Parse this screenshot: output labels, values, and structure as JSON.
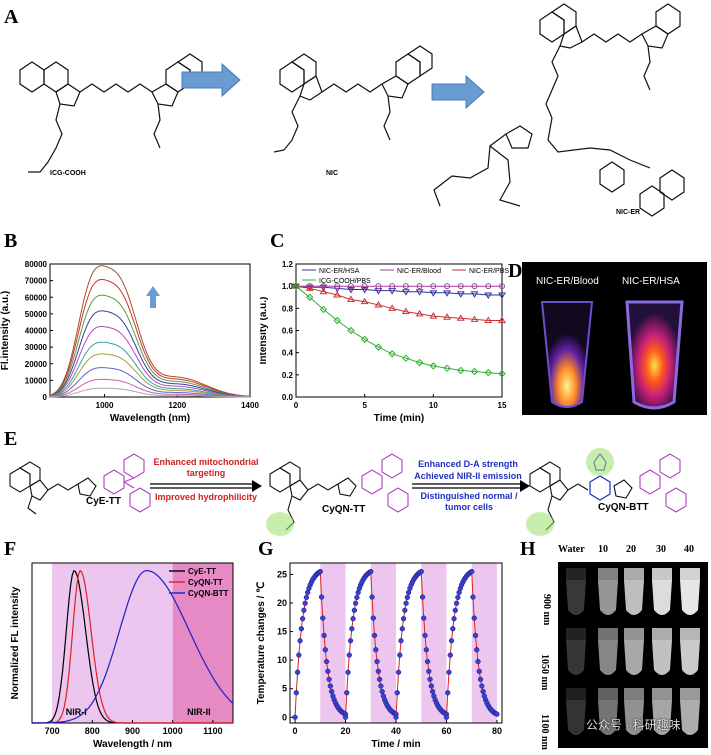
{
  "panels": {
    "A": "A",
    "B": "B",
    "C": "C",
    "D": "D",
    "E": "E",
    "F": "F",
    "G": "G",
    "H": "H"
  },
  "panel_a": {
    "molecules": [
      "ICG-COOH",
      "NIC",
      "NIC-ER"
    ]
  },
  "panel_d": {
    "labels": [
      "NIC-ER/Blood",
      "NIC-ER/HSA"
    ]
  },
  "panel_e": {
    "molecules": [
      "CyE-TT",
      "CyQN-TT",
      "CyQN-BTT"
    ],
    "arrow1_top": "Enhanced mitochondrial targeting",
    "arrow1_bottom": "Improved hydrophilicity",
    "arrow2_top_1": "Enhanced D-A strength",
    "arrow2_top_2": "Achieved NIR-II emission",
    "arrow2_bottom": "Distinguished normal / tumor cells"
  },
  "panel_h": {
    "columns": [
      "Water",
      "10",
      "20",
      "30",
      "40"
    ],
    "rows": [
      "900 nm",
      "1050 nm",
      "1100 nm"
    ]
  },
  "watermark": "公众号 · 科研趣味",
  "chart_data": [
    {
      "id": "B",
      "type": "line",
      "xlabel": "Wavelength (nm)",
      "ylabel": "Fl.intensity (a.u.)",
      "xlim": [
        850,
        1400
      ],
      "ylim": [
        0,
        80000
      ],
      "xticks": [
        1000,
        1200,
        1400
      ],
      "yticks": [
        0,
        10000,
        20000,
        30000,
        40000,
        50000,
        60000,
        70000,
        80000
      ],
      "series_peaks": [
        67000,
        60000,
        52000,
        44000,
        36000,
        28000,
        22000,
        15000,
        9000,
        4500
      ],
      "colors": [
        "#a0522d",
        "#cc3333",
        "#5a9e3c",
        "#3c3ca8",
        "#b44ab4",
        "#3aa0a0",
        "#a0a03c",
        "#6060d0",
        "#d060a0",
        "#aaaaaa"
      ]
    },
    {
      "id": "C",
      "type": "line",
      "xlabel": "Time (min)",
      "ylabel": "Intensity (a.u.)",
      "xlim": [
        0,
        15
      ],
      "ylim": [
        0,
        1.2
      ],
      "xticks": [
        0,
        5,
        10,
        15
      ],
      "yticks": [
        0,
        0.2,
        0.4,
        0.6,
        0.8,
        1.0,
        1.2
      ],
      "x": [
        0,
        1,
        2,
        3,
        4,
        5,
        6,
        7,
        8,
        9,
        10,
        11,
        12,
        13,
        14,
        15
      ],
      "series": [
        {
          "name": "NIC-ER/HSA",
          "color": "#3030a0",
          "marker": "tri-down",
          "values": [
            1.0,
            0.99,
            0.99,
            0.98,
            0.97,
            0.97,
            0.96,
            0.96,
            0.95,
            0.95,
            0.94,
            0.94,
            0.93,
            0.93,
            0.92,
            0.92
          ]
        },
        {
          "name": "NIC-ER/Blood",
          "color": "#a040a0",
          "marker": "circle",
          "values": [
            1.0,
            1.0,
            1.0,
            1.0,
            1.0,
            1.0,
            1.0,
            1.0,
            1.0,
            1.0,
            1.0,
            1.0,
            1.0,
            1.0,
            1.0,
            1.0
          ]
        },
        {
          "name": "NIC-ER/PBS",
          "color": "#cc3030",
          "marker": "tri-up",
          "values": [
            1.0,
            0.98,
            0.95,
            0.92,
            0.88,
            0.86,
            0.83,
            0.8,
            0.77,
            0.75,
            0.73,
            0.72,
            0.71,
            0.7,
            0.69,
            0.69
          ]
        },
        {
          "name": "ICG-COOH/PBS",
          "color": "#30b030",
          "marker": "diamond",
          "values": [
            1.0,
            0.9,
            0.79,
            0.69,
            0.6,
            0.52,
            0.45,
            0.39,
            0.35,
            0.31,
            0.28,
            0.26,
            0.24,
            0.23,
            0.22,
            0.21
          ]
        }
      ]
    },
    {
      "id": "F",
      "type": "line",
      "xlabel": "Wavelength / nm",
      "ylabel": "Normalized FL intensity",
      "xlim": [
        650,
        1150
      ],
      "ylim": [
        0,
        1.05
      ],
      "xticks": [
        700,
        800,
        900,
        1000,
        1100
      ],
      "regions": [
        {
          "label": "NIR-I",
          "from": 700,
          "to": 1000
        },
        {
          "label": "NIR-II",
          "from": 1000,
          "to": 1150
        }
      ],
      "series": [
        {
          "name": "CyE-TT",
          "color": "#000000",
          "peak": 755,
          "width": 40
        },
        {
          "name": "CyQN-TT",
          "color": "#e02020",
          "peak": 770,
          "width": 38
        },
        {
          "name": "CyQN-BTT",
          "color": "#2020c0",
          "peak": 935,
          "width": 85
        }
      ]
    },
    {
      "id": "G",
      "type": "line",
      "xlabel": "Time / min",
      "ylabel": "Temperature changes / ℃",
      "xlim": [
        -2,
        82
      ],
      "ylim": [
        -1,
        27
      ],
      "xticks": [
        0,
        20,
        40,
        60,
        80
      ],
      "yticks": [
        0,
        5,
        10,
        15,
        20,
        25
      ],
      "cycles": [
        {
          "on": 0,
          "off": 10
        },
        {
          "on": 20,
          "off": 30
        },
        {
          "on": 40,
          "off": 50
        },
        {
          "on": 60,
          "off": 70
        }
      ],
      "max_change": 25.5
    }
  ]
}
